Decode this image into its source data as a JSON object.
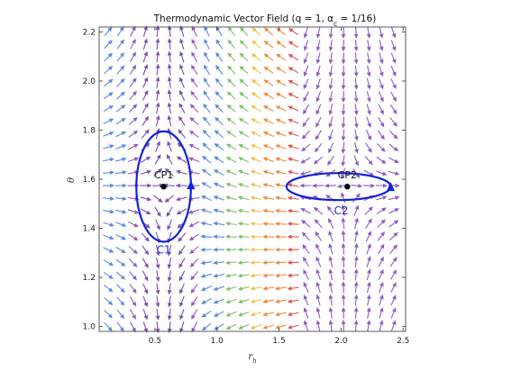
{
  "chart_data": {
    "type": "vector-field",
    "title": "Thermodynamic Vector Field  (q = 1,  α",
    "title_sub": "c",
    "title_tail": " = 1/16)",
    "xlabel": "r",
    "xlabel_sub": "h",
    "ylabel": "θ",
    "xlim": [
      0.05,
      2.52
    ],
    "ylim": [
      0.98,
      2.22
    ],
    "xticks": [
      "0.5",
      "1.0",
      "1.5",
      "2.0",
      "2.5"
    ],
    "xtick_values": [
      0.5,
      1.0,
      1.5,
      2.0,
      2.5
    ],
    "yticks": [
      "1.0",
      "1.2",
      "1.4",
      "1.6",
      "1.8",
      "2.0",
      "2.2"
    ],
    "ytick_values": [
      1.0,
      1.2,
      1.4,
      1.6,
      1.8,
      2.0,
      2.2
    ],
    "grid": false,
    "critical_points": [
      {
        "label": "CP1",
        "x": 0.57,
        "y": 1.57
      },
      {
        "label": "CP2",
        "x": 2.05,
        "y": 1.57
      }
    ],
    "contours": [
      {
        "label": "C1",
        "cx": 0.57,
        "cy": 1.57,
        "rx": 0.22,
        "ry": 0.225
      },
      {
        "label": "C2",
        "cx": 1.98,
        "cy": 1.57,
        "rx": 0.42,
        "ry": 0.055
      }
    ],
    "colors": {
      "arrow_palette": [
        "#e05353",
        "#ef8a3a",
        "#e8c34a",
        "#7fbf6e",
        "#5b8ad8",
        "#8e5bc4",
        "#7a4fb0"
      ],
      "contour": "#1020d8",
      "point": "#000000",
      "frame": "#333333"
    }
  }
}
